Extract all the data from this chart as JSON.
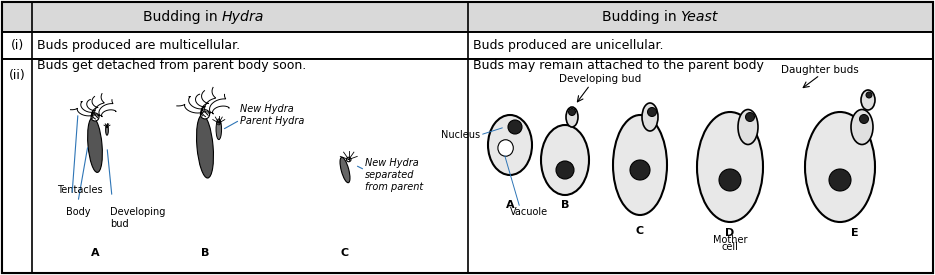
{
  "fig_width": 9.35,
  "fig_height": 2.75,
  "dpi": 100,
  "bg_color": "#ffffff",
  "header_bg": "#d9d9d9",
  "border_color": "#000000",
  "col1_header": "Budding in Hydra",
  "col2_header": "Budding in Yeast",
  "col1_italic": "Hydra",
  "col2_italic": "Yeast",
  "row_i_col1": "Buds produced are multicellular.",
  "row_i_col2": "Buds produced are unicellular.",
  "row_ii_col1_text": "Buds get detached from parent body soon.",
  "row_ii_col2_text": "Buds may remain attached to the parent body",
  "hydra_labels": {
    "tentacles": "Tentacles",
    "body": "Body",
    "developing_bud": "Developing\nbud",
    "new_hydra_parent": "New Hydra\nParent Hydra",
    "new_hydra_sep": "New Hydra\nseparated\nfrom parent",
    "A": "A",
    "B": "B",
    "C": "C"
  },
  "yeast_labels": {
    "nucleus": "Nucleus",
    "vacuole": "Vacuole",
    "developing_bud": "Developing bud",
    "daughter_buds": "Daughter buds",
    "mother_cell": "Mother\ncell",
    "A": "A",
    "B": "B",
    "C": "C",
    "D": "D",
    "E": "E"
  }
}
